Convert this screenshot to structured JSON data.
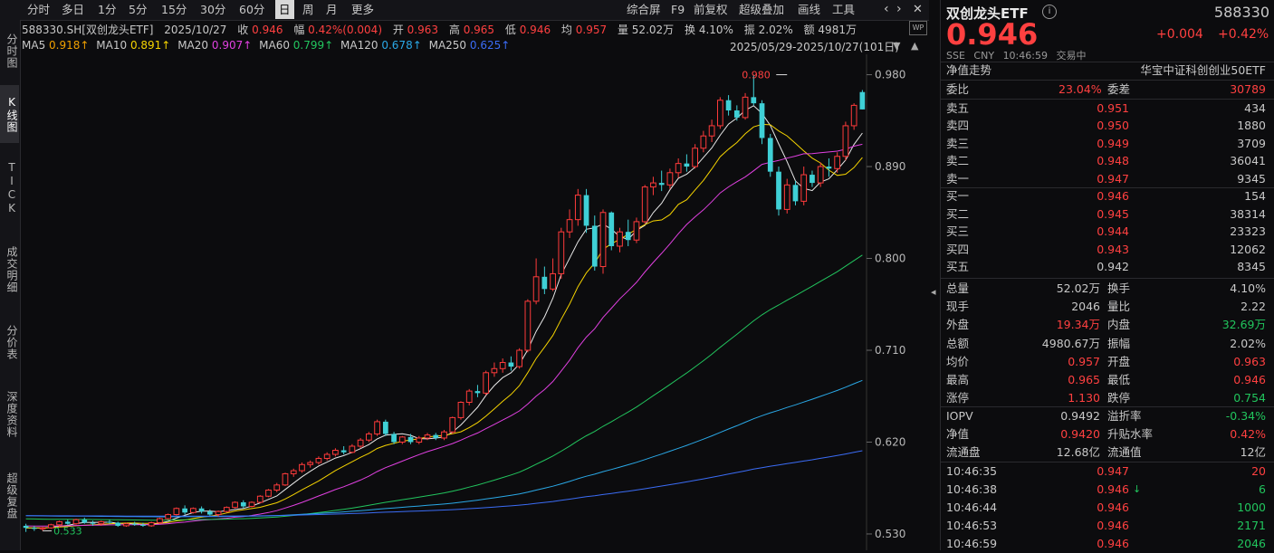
{
  "vtabs": [
    "分时图",
    "K线图",
    "TICK",
    "成交明细",
    "分价表",
    "深度资料",
    "超级复盘"
  ],
  "toolbar": {
    "periods": [
      "分时",
      "多日",
      "1分",
      "5分",
      "15分",
      "30分",
      "60分",
      "日",
      "周",
      "月",
      "更多"
    ],
    "active_period": "日",
    "tools": [
      "综合屏",
      "F9",
      "前复权",
      "超级叠加",
      "画线",
      "工具"
    ]
  },
  "quote_line": {
    "code_name": "588330.SH[双创龙头ETF]",
    "date": "2025/10/27",
    "close_label": "收",
    "close": "0.946",
    "chg_label": "幅",
    "chg": "0.42%(0.004)",
    "open_label": "开",
    "open": "0.963",
    "high_label": "高",
    "high": "0.965",
    "low_label": "低",
    "low": "0.946",
    "avg_label": "均",
    "avg": "0.957",
    "vol_label": "量",
    "vol": "52.02万",
    "turn_label": "换",
    "turn": "4.10%",
    "amp_label": "振",
    "amp": "2.02%",
    "amt_label": "额",
    "amt": "4981万"
  },
  "ma_line": [
    {
      "label": "MA5",
      "value": "0.918↑",
      "color": "#e0e0e0"
    },
    {
      "label": "MA10",
      "value": "0.891↑",
      "color": "#f5d300"
    },
    {
      "label": "MA20",
      "value": "0.907↑",
      "color": "#e040e0"
    },
    {
      "label": "MA60",
      "value": "0.799↑",
      "color": "#22c55e"
    },
    {
      "label": "MA120",
      "value": "0.678↑",
      "color": "#2aa8e6"
    },
    {
      "label": "MA250",
      "value": "0.625↑",
      "color": "#3b6cf5"
    }
  ],
  "range_text": "2025/05/29-2025/10/27(101日)",
  "chart_data": {
    "type": "candlestick",
    "y_ticks": [
      "0.980",
      "0.890",
      "0.800",
      "0.710",
      "0.620",
      "0.530"
    ],
    "ylim": [
      0.514,
      1.0
    ],
    "annotations": [
      {
        "text": "0.980",
        "value": 0.98,
        "index": 91
      },
      {
        "text": "0.533",
        "value": 0.533,
        "index": 2
      }
    ],
    "candles": [
      [
        0.538,
        0.54,
        0.532,
        0.536
      ],
      [
        0.536,
        0.538,
        0.533,
        0.535
      ],
      [
        0.535,
        0.537,
        0.533,
        0.536
      ],
      [
        0.536,
        0.54,
        0.535,
        0.539
      ],
      [
        0.539,
        0.543,
        0.537,
        0.542
      ],
      [
        0.542,
        0.544,
        0.539,
        0.54
      ],
      [
        0.54,
        0.545,
        0.539,
        0.544
      ],
      [
        0.544,
        0.546,
        0.54,
        0.541
      ],
      [
        0.541,
        0.543,
        0.538,
        0.54
      ],
      [
        0.54,
        0.543,
        0.538,
        0.542
      ],
      [
        0.542,
        0.544,
        0.54,
        0.541
      ],
      [
        0.541,
        0.542,
        0.537,
        0.538
      ],
      [
        0.538,
        0.541,
        0.537,
        0.54
      ],
      [
        0.54,
        0.542,
        0.538,
        0.539
      ],
      [
        0.539,
        0.541,
        0.537,
        0.538
      ],
      [
        0.538,
        0.542,
        0.537,
        0.541
      ],
      [
        0.541,
        0.546,
        0.54,
        0.545
      ],
      [
        0.545,
        0.55,
        0.544,
        0.549
      ],
      [
        0.549,
        0.556,
        0.548,
        0.555
      ],
      [
        0.555,
        0.558,
        0.549,
        0.551
      ],
      [
        0.551,
        0.556,
        0.55,
        0.555
      ],
      [
        0.555,
        0.557,
        0.55,
        0.552
      ],
      [
        0.552,
        0.554,
        0.548,
        0.549
      ],
      [
        0.549,
        0.553,
        0.547,
        0.552
      ],
      [
        0.552,
        0.557,
        0.551,
        0.556
      ],
      [
        0.556,
        0.562,
        0.555,
        0.561
      ],
      [
        0.561,
        0.563,
        0.555,
        0.557
      ],
      [
        0.557,
        0.562,
        0.556,
        0.561
      ],
      [
        0.561,
        0.568,
        0.56,
        0.567
      ],
      [
        0.567,
        0.574,
        0.566,
        0.573
      ],
      [
        0.573,
        0.58,
        0.571,
        0.578
      ],
      [
        0.578,
        0.59,
        0.577,
        0.589
      ],
      [
        0.589,
        0.594,
        0.586,
        0.592
      ],
      [
        0.592,
        0.6,
        0.59,
        0.598
      ],
      [
        0.598,
        0.602,
        0.595,
        0.6
      ],
      [
        0.6,
        0.606,
        0.598,
        0.604
      ],
      [
        0.604,
        0.61,
        0.602,
        0.608
      ],
      [
        0.608,
        0.614,
        0.606,
        0.612
      ],
      [
        0.612,
        0.616,
        0.608,
        0.61
      ],
      [
        0.61,
        0.618,
        0.609,
        0.616
      ],
      [
        0.616,
        0.624,
        0.614,
        0.622
      ],
      [
        0.622,
        0.63,
        0.62,
        0.628
      ],
      [
        0.628,
        0.642,
        0.626,
        0.64
      ],
      [
        0.64,
        0.642,
        0.626,
        0.628
      ],
      [
        0.628,
        0.63,
        0.618,
        0.62
      ],
      [
        0.62,
        0.626,
        0.618,
        0.625
      ],
      [
        0.625,
        0.628,
        0.618,
        0.62
      ],
      [
        0.62,
        0.626,
        0.618,
        0.624
      ],
      [
        0.624,
        0.629,
        0.622,
        0.627
      ],
      [
        0.627,
        0.629,
        0.622,
        0.624
      ],
      [
        0.624,
        0.632,
        0.622,
        0.63
      ],
      [
        0.63,
        0.645,
        0.628,
        0.644
      ],
      [
        0.644,
        0.66,
        0.642,
        0.659
      ],
      [
        0.659,
        0.672,
        0.656,
        0.67
      ],
      [
        0.67,
        0.676,
        0.664,
        0.668
      ],
      [
        0.668,
        0.69,
        0.666,
        0.688
      ],
      [
        0.688,
        0.698,
        0.684,
        0.692
      ],
      [
        0.692,
        0.702,
        0.688,
        0.698
      ],
      [
        0.698,
        0.704,
        0.69,
        0.694
      ],
      [
        0.694,
        0.712,
        0.692,
        0.71
      ],
      [
        0.71,
        0.76,
        0.708,
        0.758
      ],
      [
        0.758,
        0.8,
        0.755,
        0.782
      ],
      [
        0.782,
        0.792,
        0.765,
        0.77
      ],
      [
        0.77,
        0.8,
        0.768,
        0.785
      ],
      [
        0.785,
        0.83,
        0.78,
        0.826
      ],
      [
        0.826,
        0.848,
        0.82,
        0.838
      ],
      [
        0.838,
        0.868,
        0.832,
        0.862
      ],
      [
        0.862,
        0.868,
        0.825,
        0.832
      ],
      [
        0.832,
        0.842,
        0.788,
        0.792
      ],
      [
        0.792,
        0.848,
        0.785,
        0.845
      ],
      [
        0.845,
        0.846,
        0.808,
        0.812
      ],
      [
        0.812,
        0.83,
        0.806,
        0.826
      ],
      [
        0.826,
        0.838,
        0.812,
        0.818
      ],
      [
        0.818,
        0.84,
        0.815,
        0.836
      ],
      [
        0.836,
        0.872,
        0.834,
        0.87
      ],
      [
        0.87,
        0.88,
        0.862,
        0.874
      ],
      [
        0.874,
        0.886,
        0.866,
        0.872
      ],
      [
        0.872,
        0.888,
        0.868,
        0.884
      ],
      [
        0.884,
        0.898,
        0.879,
        0.893
      ],
      [
        0.893,
        0.902,
        0.885,
        0.89
      ],
      [
        0.89,
        0.912,
        0.888,
        0.908
      ],
      [
        0.908,
        0.925,
        0.904,
        0.92
      ],
      [
        0.92,
        0.936,
        0.914,
        0.93
      ],
      [
        0.93,
        0.958,
        0.927,
        0.955
      ],
      [
        0.955,
        0.96,
        0.94,
        0.945
      ],
      [
        0.945,
        0.95,
        0.935,
        0.938
      ],
      [
        0.938,
        0.962,
        0.936,
        0.958
      ],
      [
        0.958,
        0.98,
        0.95,
        0.952
      ],
      [
        0.952,
        0.955,
        0.912,
        0.918
      ],
      [
        0.918,
        0.922,
        0.88,
        0.885
      ],
      [
        0.885,
        0.89,
        0.842,
        0.848
      ],
      [
        0.848,
        0.878,
        0.844,
        0.872
      ],
      [
        0.872,
        0.876,
        0.852,
        0.856
      ],
      [
        0.856,
        0.89,
        0.852,
        0.882
      ],
      [
        0.882,
        0.886,
        0.87,
        0.874
      ],
      [
        0.874,
        0.894,
        0.87,
        0.89
      ],
      [
        0.89,
        0.898,
        0.88,
        0.888
      ],
      [
        0.888,
        0.904,
        0.884,
        0.9
      ],
      [
        0.9,
        0.934,
        0.896,
        0.93
      ],
      [
        0.93,
        0.952,
        0.926,
        0.95
      ],
      [
        0.963,
        0.965,
        0.946,
        0.946
      ]
    ]
  },
  "rp": {
    "name": "双创龙头ETF",
    "code": "588330",
    "price": "0.946",
    "change": "+0.004",
    "pct": "+0.42%",
    "exch": "SSE",
    "ccy": "CNY",
    "time": "10:46:59",
    "status": "交易中",
    "nav_label": "净值走势",
    "index_name": "华宝中证科创创业50ETF",
    "weibi_label": "委比",
    "weibi": "23.04%",
    "weicha_label": "委差",
    "weicha": "30789",
    "asks": [
      {
        "label": "卖五",
        "price": "0.951",
        "vol": "434"
      },
      {
        "label": "卖四",
        "price": "0.950",
        "vol": "1880"
      },
      {
        "label": "卖三",
        "price": "0.949",
        "vol": "3709"
      },
      {
        "label": "卖二",
        "price": "0.948",
        "vol": "36041"
      },
      {
        "label": "卖一",
        "price": "0.947",
        "vol": "9345"
      }
    ],
    "bids": [
      {
        "label": "买一",
        "price": "0.946",
        "vol": "154"
      },
      {
        "label": "买二",
        "price": "0.945",
        "vol": "38314"
      },
      {
        "label": "买三",
        "price": "0.944",
        "vol": "23323"
      },
      {
        "label": "买四",
        "price": "0.943",
        "vol": "12062"
      },
      {
        "label": "买五",
        "price": "0.942",
        "vol": "8345"
      }
    ],
    "stats": [
      {
        "l1": "总量",
        "v1": "52.02万",
        "c1": "gray",
        "l2": "换手",
        "v2": "4.10%",
        "c2": "gray"
      },
      {
        "l1": "现手",
        "v1": "2046",
        "c1": "gray",
        "l2": "量比",
        "v2": "2.22",
        "c2": "gray"
      },
      {
        "l1": "外盘",
        "v1": "19.34万",
        "c1": "red",
        "l2": "内盘",
        "v2": "32.69万",
        "c2": "green"
      },
      {
        "l1": "总额",
        "v1": "4980.67万",
        "c1": "gray",
        "l2": "振幅",
        "v2": "2.02%",
        "c2": "gray"
      },
      {
        "l1": "均价",
        "v1": "0.957",
        "c1": "red",
        "l2": "开盘",
        "v2": "0.963",
        "c2": "red"
      },
      {
        "l1": "最高",
        "v1": "0.965",
        "c1": "red",
        "l2": "最低",
        "v2": "0.946",
        "c2": "red"
      },
      {
        "l1": "涨停",
        "v1": "1.130",
        "c1": "red",
        "l2": "跌停",
        "v2": "0.754",
        "c2": "green"
      }
    ],
    "stats2": [
      {
        "l1": "IOPV",
        "v1": "0.9492",
        "c1": "gray",
        "l2": "溢折率",
        "v2": "-0.34%",
        "c2": "green"
      },
      {
        "l1": "净值",
        "v1": "0.9420",
        "c1": "red",
        "l2": "升贴水率",
        "v2": "0.42%",
        "c2": "red"
      },
      {
        "l1": "流通盘",
        "v1": "12.68亿",
        "c1": "gray",
        "l2": "流通值",
        "v2": "12亿",
        "c2": "gray"
      }
    ],
    "ticks": [
      {
        "time": "10:46:35",
        "price": "0.947",
        "arrow": "",
        "vol": "20",
        "vc": "red"
      },
      {
        "time": "10:46:38",
        "price": "0.946",
        "arrow": "↓",
        "vol": "6",
        "vc": "green"
      },
      {
        "time": "10:46:44",
        "price": "0.946",
        "arrow": "",
        "vol": "1000",
        "vc": "green"
      },
      {
        "time": "10:46:53",
        "price": "0.946",
        "arrow": "",
        "vol": "2171",
        "vc": "green"
      },
      {
        "time": "10:46:59",
        "price": "0.946",
        "arrow": "",
        "vol": "2046",
        "vc": "green"
      }
    ]
  }
}
